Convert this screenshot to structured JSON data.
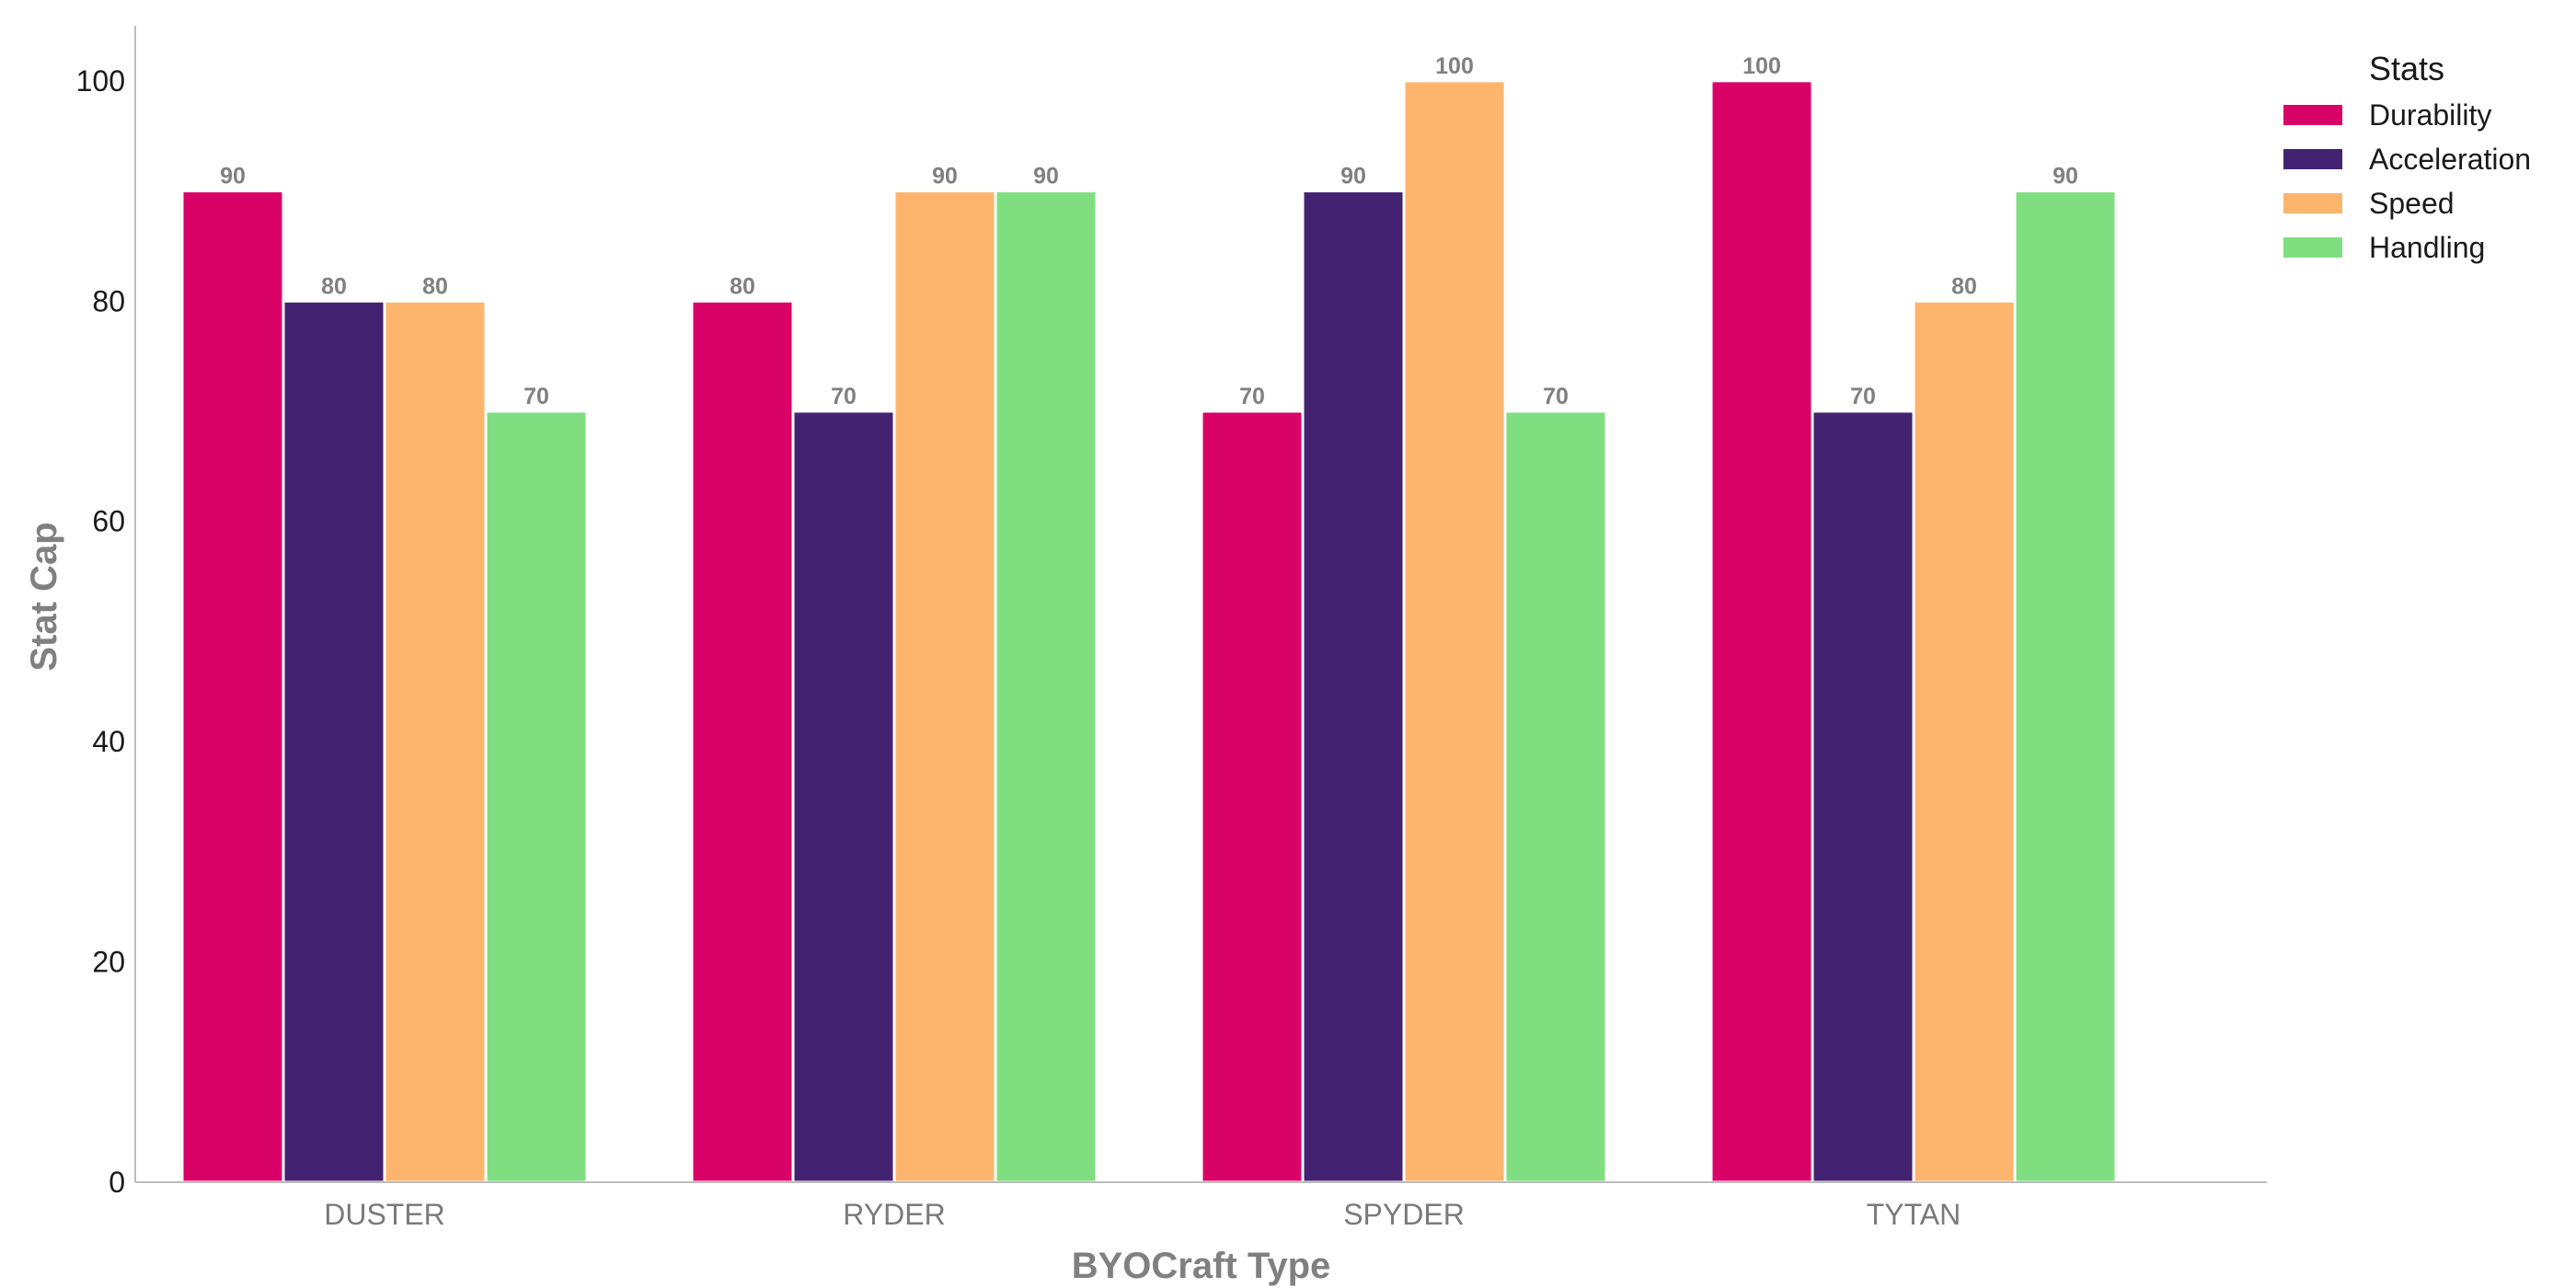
{
  "chart_data": {
    "type": "bar",
    "title": "",
    "xlabel": "BYOCraft Type",
    "ylabel": "Stat Cap",
    "categories": [
      "DUSTER",
      "RYDER",
      "SPYDER",
      "TYTAN"
    ],
    "series": [
      {
        "name": "Durability",
        "color": "#D90368",
        "values": [
          90,
          80,
          70,
          100
        ]
      },
      {
        "name": "Acceleration",
        "color": "#432371",
        "values": [
          80,
          70,
          90,
          70
        ]
      },
      {
        "name": "Speed",
        "color": "#FDB56E",
        "values": [
          80,
          90,
          100,
          80
        ]
      },
      {
        "name": "Handling",
        "color": "#7FDF80",
        "values": [
          70,
          90,
          70,
          90
        ]
      }
    ],
    "ylim": [
      0,
      105
    ],
    "yticks": [
      0,
      20,
      40,
      60,
      80,
      100
    ],
    "grid": false,
    "legend": {
      "title": "Stats",
      "placement": "top-right, outside plot"
    },
    "data_labels": true
  }
}
